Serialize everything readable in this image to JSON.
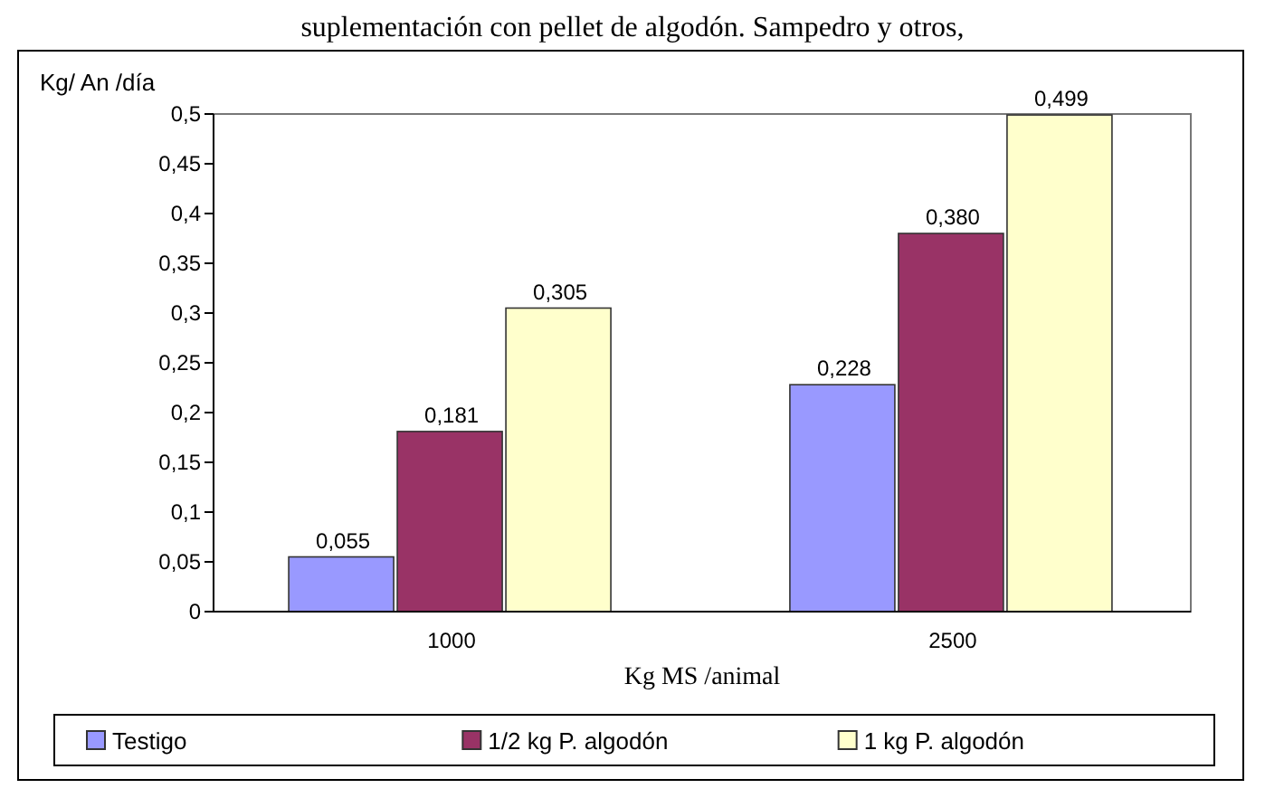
{
  "chart_data": {
    "type": "bar",
    "title": "suplementación con pellet de algodón. Sampedro y otros,",
    "xlabel": "Kg MS /animal",
    "ylabel": "Kg/ An /día",
    "categories": [
      "1000",
      "2500"
    ],
    "series": [
      {
        "name": "Testigo",
        "color": "#9999ff",
        "values": [
          0.055,
          0.228
        ]
      },
      {
        "name": "1/2 kg P. algodón",
        "color": "#993366",
        "values": [
          0.181,
          0.38
        ]
      },
      {
        "name": "1 kg P. algodón",
        "color": "#ffffcc",
        "values": [
          0.305,
          0.499
        ]
      }
    ],
    "ylim": [
      0,
      0.5
    ],
    "yticks": [
      {
        "value": 0,
        "label": "0"
      },
      {
        "value": 0.05,
        "label": "0,05"
      },
      {
        "value": 0.1,
        "label": "0,1"
      },
      {
        "value": 0.15,
        "label": "0,15"
      },
      {
        "value": 0.2,
        "label": "0,2"
      },
      {
        "value": 0.25,
        "label": "0,25"
      },
      {
        "value": 0.3,
        "label": "0,3"
      },
      {
        "value": 0.35,
        "label": "0,35"
      },
      {
        "value": 0.4,
        "label": "0,4"
      },
      {
        "value": 0.45,
        "label": "0,45"
      },
      {
        "value": 0.5,
        "label": "0,5"
      }
    ],
    "value_labels": [
      [
        "0,055",
        "0,228"
      ],
      [
        "0,181",
        "0,380"
      ],
      [
        "0,305",
        "0,499"
      ]
    ],
    "legend": "bottom",
    "grid": false
  }
}
